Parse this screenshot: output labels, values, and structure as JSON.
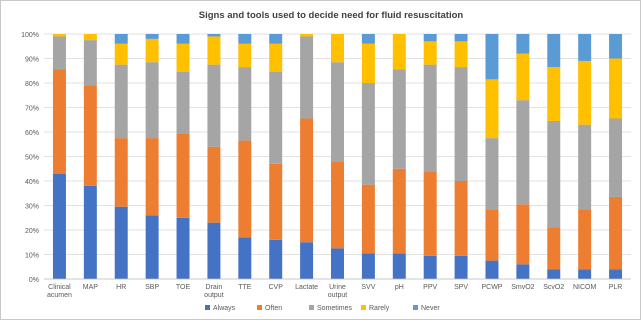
{
  "chart_data": {
    "type": "bar",
    "stacked": true,
    "title": "Signs and tools used to decide need for fluid resuscitation",
    "xlabel": "",
    "ylabel": "",
    "ylim": [
      0,
      100
    ],
    "y_ticks": [
      "0%",
      "10%",
      "20%",
      "30%",
      "40%",
      "50%",
      "60%",
      "70%",
      "80%",
      "90%",
      "100%"
    ],
    "grid": true,
    "legend_position": "bottom",
    "categories": [
      [
        "Clinical",
        "acumen"
      ],
      [
        "MAP"
      ],
      [
        "HR"
      ],
      [
        "SBP"
      ],
      [
        "TOE"
      ],
      [
        "Drain",
        "output"
      ],
      [
        "TTE"
      ],
      [
        "CVP"
      ],
      [
        "Lactate"
      ],
      [
        "Urine",
        "output"
      ],
      [
        "SVV"
      ],
      [
        "pH"
      ],
      [
        "PPV"
      ],
      [
        "SPV"
      ],
      [
        "PCWP"
      ],
      [
        "SmvO2"
      ],
      [
        "ScvO2"
      ],
      [
        "NICOM"
      ],
      [
        "PLR"
      ]
    ],
    "series": [
      {
        "name": "Always",
        "color": "#4472C4",
        "values": [
          43,
          38,
          29.5,
          26,
          25,
          23,
          17,
          16,
          15,
          12.5,
          10.5,
          10.5,
          9.5,
          9.5,
          7.5,
          6,
          4,
          4,
          4
        ]
      },
      {
        "name": "Often",
        "color": "#ED7D31",
        "values": [
          42.5,
          41,
          28,
          31.5,
          34.5,
          31,
          39.5,
          31,
          50.5,
          35.5,
          28,
          34.5,
          34.5,
          30.5,
          21,
          24.5,
          17,
          24.5,
          29.5
        ]
      },
      {
        "name": "Sometimes",
        "color": "#A5A5A5",
        "values": [
          13.5,
          18.5,
          30,
          31,
          25,
          33.5,
          30,
          37.5,
          33.5,
          40.5,
          41.5,
          40.5,
          43.5,
          46.5,
          29,
          42.5,
          43.5,
          34.5,
          32
        ]
      },
      {
        "name": "Rarely",
        "color": "#FFC000",
        "values": [
          1,
          2.5,
          8.5,
          9.5,
          11.5,
          11.5,
          9.5,
          11.5,
          1,
          11.5,
          16,
          14.5,
          9.5,
          10.5,
          24,
          19,
          22,
          26,
          24.5
        ]
      },
      {
        "name": "Never",
        "color": "#5B9BD5",
        "values": [
          0,
          0,
          4,
          2,
          4,
          1,
          4,
          4,
          0,
          0,
          4,
          0,
          3,
          3,
          18.5,
          8,
          13.5,
          11,
          10
        ]
      }
    ]
  }
}
